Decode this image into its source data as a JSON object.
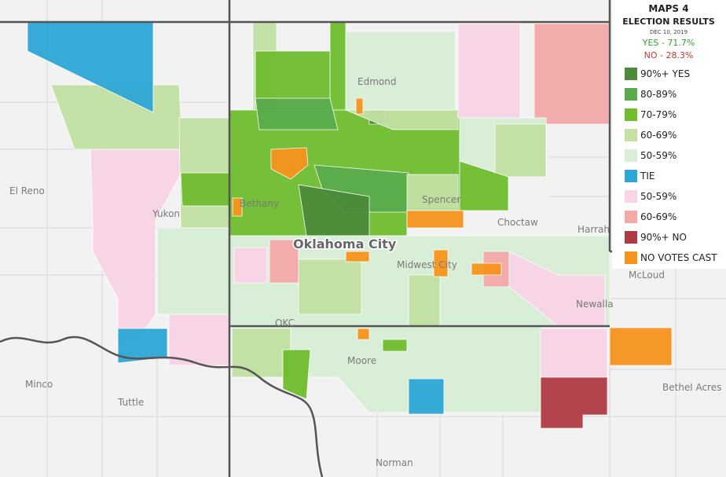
{
  "legend": {
    "title": "MAPS 4",
    "subtitle": "ELECTION RESULTS",
    "date": "DEC 10, 2019",
    "yes": "YES - 71.7%",
    "no": "NO - 28.3%",
    "items": [
      {
        "label": "90%+ YES",
        "color": "#4b8b3b"
      },
      {
        "label": "80-89%",
        "color": "#5aab4c"
      },
      {
        "label": "70-79%",
        "color": "#70bd2f"
      },
      {
        "label": "60-69%",
        "color": "#c2e1a3"
      },
      {
        "label": "50-59%",
        "color": "#d8eed5"
      },
      {
        "label": "TIE",
        "color": "#2ea7d6"
      },
      {
        "label": "50-59%",
        "color": "#f9d3e7"
      },
      {
        "label": "60-69%",
        "color": "#f4a9a9"
      },
      {
        "label": "90%+ NO",
        "color": "#b03a44"
      },
      {
        "label": "NO VOTES CAST",
        "color": "#f7941d"
      }
    ]
  },
  "places": [
    "El Reno",
    "Yukon",
    "Bethany",
    "Edmond",
    "Spencer",
    "Choctaw",
    "Harrah",
    "Oklahoma City",
    "Midwest City",
    "McLoud",
    "Newalla",
    "OKC",
    "Moore",
    "Minco",
    "Tuttle",
    "Bethel Acres",
    "Norman"
  ]
}
